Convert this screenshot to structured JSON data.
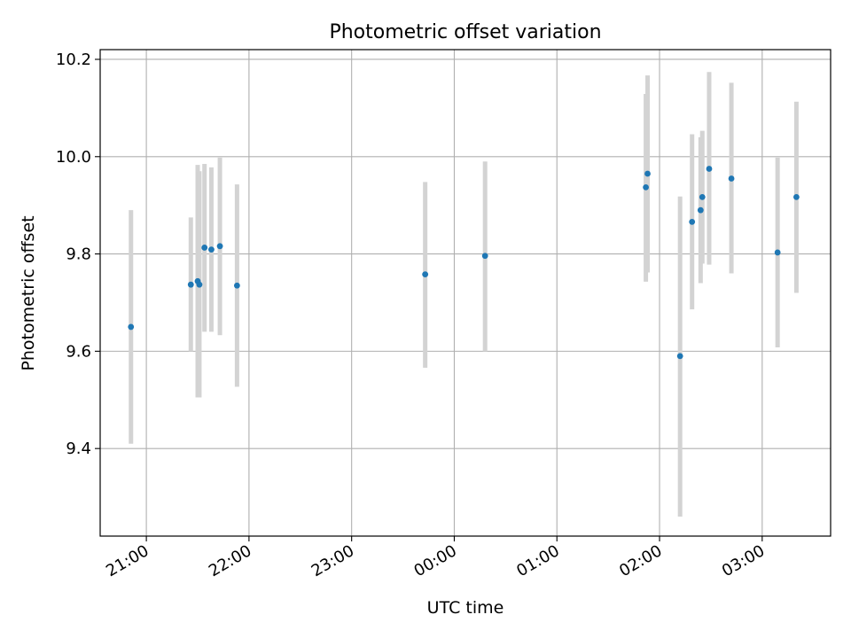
{
  "chart_data": {
    "type": "scatter",
    "title": "Photometric offset variation",
    "xlabel": "UTC time",
    "ylabel": "Photometric offset",
    "x_axis": {
      "type": "time",
      "range": [
        "20:33",
        "03:40"
      ],
      "ticks": [
        "21:00",
        "22:00",
        "23:00",
        "00:00",
        "01:00",
        "02:00",
        "03:00"
      ]
    },
    "y_axis": {
      "range": [
        9.22,
        10.22
      ],
      "ticks": [
        "9.4",
        "9.6",
        "9.8",
        "10.0",
        "10.2"
      ]
    },
    "grid": true,
    "colors": {
      "points": "#1f77b4",
      "errorbars": "#d3d3d3",
      "grid": "#b0b0b0"
    },
    "points": [
      {
        "time": "20:51",
        "y": 9.65,
        "ylow": 9.41,
        "yhigh": 9.89
      },
      {
        "time": "21:26",
        "y": 9.737,
        "ylow": 9.6,
        "yhigh": 9.875
      },
      {
        "time": "21:30",
        "y": 9.744,
        "ylow": 9.505,
        "yhigh": 9.983
      },
      {
        "time": "21:31",
        "y": 9.737,
        "ylow": 9.505,
        "yhigh": 9.97
      },
      {
        "time": "21:34",
        "y": 9.813,
        "ylow": 9.64,
        "yhigh": 9.985
      },
      {
        "time": "21:38",
        "y": 9.809,
        "ylow": 9.64,
        "yhigh": 9.978
      },
      {
        "time": "21:43",
        "y": 9.816,
        "ylow": 9.633,
        "yhigh": 9.998
      },
      {
        "time": "21:53",
        "y": 9.735,
        "ylow": 9.527,
        "yhigh": 9.943
      },
      {
        "time": "23:43",
        "y": 9.758,
        "ylow": 9.566,
        "yhigh": 9.948
      },
      {
        "time": "00:18",
        "y": 9.796,
        "ylow": 9.6,
        "yhigh": 9.99
      },
      {
        "time": "01:52",
        "y": 9.937,
        "ylow": 9.743,
        "yhigh": 10.129
      },
      {
        "time": "01:53",
        "y": 9.965,
        "ylow": 9.762,
        "yhigh": 10.167
      },
      {
        "time": "02:12",
        "y": 9.59,
        "ylow": 9.26,
        "yhigh": 9.918
      },
      {
        "time": "02:19",
        "y": 9.866,
        "ylow": 9.686,
        "yhigh": 10.046
      },
      {
        "time": "02:24",
        "y": 9.89,
        "ylow": 9.74,
        "yhigh": 10.04
      },
      {
        "time": "02:25",
        "y": 9.917,
        "ylow": 9.78,
        "yhigh": 10.053
      },
      {
        "time": "02:29",
        "y": 9.975,
        "ylow": 9.778,
        "yhigh": 10.174
      },
      {
        "time": "02:42",
        "y": 9.955,
        "ylow": 9.76,
        "yhigh": 10.152
      },
      {
        "time": "03:09",
        "y": 9.803,
        "ylow": 9.608,
        "yhigh": 9.998
      },
      {
        "time": "03:20",
        "y": 9.917,
        "ylow": 9.72,
        "yhigh": 10.113
      }
    ]
  }
}
